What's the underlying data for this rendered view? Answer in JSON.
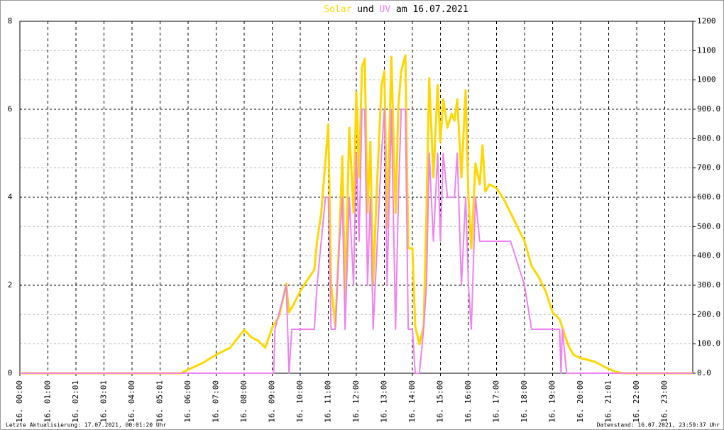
{
  "chart_data": {
    "type": "line",
    "title_parts": [
      "und",
      "am 16.07.2021"
    ],
    "xlim": [
      0,
      24
    ],
    "xticks": [
      {
        "value": 0,
        "label": "16. 00:00"
      },
      {
        "value": 1,
        "label": "16. 01:00"
      },
      {
        "value": 2,
        "label": "16. 02:01"
      },
      {
        "value": 3,
        "label": "16. 03:01"
      },
      {
        "value": 4,
        "label": "16. 04:00"
      },
      {
        "value": 5,
        "label": "16. 05:01"
      },
      {
        "value": 6,
        "label": "16. 06:00"
      },
      {
        "value": 7,
        "label": "16. 07:00"
      },
      {
        "value": 8,
        "label": "16. 08:00"
      },
      {
        "value": 9,
        "label": "16. 09:00"
      },
      {
        "value": 10,
        "label": "16. 10:00"
      },
      {
        "value": 11,
        "label": "16. 11:00"
      },
      {
        "value": 12,
        "label": "16. 12:00"
      },
      {
        "value": 13,
        "label": "16. 13:00"
      },
      {
        "value": 14,
        "label": "16. 14:00"
      },
      {
        "value": 15,
        "label": "16. 15:00"
      },
      {
        "value": 16,
        "label": "16. 16:00"
      },
      {
        "value": 17,
        "label": "16. 17:00"
      },
      {
        "value": 18,
        "label": "16. 18:00"
      },
      {
        "value": 19,
        "label": "16. 19:00"
      },
      {
        "value": 20,
        "label": "16. 20:00"
      },
      {
        "value": 21,
        "label": "16. 21:01"
      },
      {
        "value": 22,
        "label": "16. 22:00"
      },
      {
        "value": 23,
        "label": "16. 23:00"
      }
    ],
    "ylim": [
      0,
      8
    ],
    "yticks": [
      0,
      2,
      4,
      6,
      8
    ],
    "y2lim": [
      0,
      1200
    ],
    "y2ticks": [
      {
        "value": 0,
        "label": "0.0"
      },
      {
        "value": 100,
        "label": "100.0"
      },
      {
        "value": 200,
        "label": "200.0"
      },
      {
        "value": 300,
        "label": "300.0"
      },
      {
        "value": 400,
        "label": "400.0"
      },
      {
        "value": 500,
        "label": "500.0"
      },
      {
        "value": 600,
        "label": "600.0"
      },
      {
        "value": 700,
        "label": "700.0"
      },
      {
        "value": 800,
        "label": "800.0"
      },
      {
        "value": 900,
        "label": "900.0"
      },
      1000,
      1100,
      1200
    ],
    "grid": true,
    "series": [
      {
        "name": "Solar",
        "color": "#ffd700",
        "axis": "y2",
        "x": [
          0,
          5.75,
          6,
          6.5,
          7,
          7.5,
          8,
          8.25,
          8.5,
          8.75,
          9,
          9.25,
          9.5,
          9.6,
          9.75,
          10,
          10.25,
          10.5,
          10.6,
          10.75,
          10.9,
          11,
          11.1,
          11.25,
          11.4,
          11.5,
          11.6,
          11.75,
          11.9,
          12,
          12.1,
          12.2,
          12.3,
          12.4,
          12.5,
          12.6,
          12.75,
          12.9,
          13,
          13.1,
          13.25,
          13.4,
          13.5,
          13.6,
          13.75,
          13.85,
          14,
          14.1,
          14.25,
          14.4,
          14.5,
          14.6,
          14.75,
          14.9,
          15,
          15.1,
          15.25,
          15.4,
          15.5,
          15.6,
          15.75,
          15.9,
          16,
          16.1,
          16.25,
          16.4,
          16.5,
          16.6,
          16.75,
          17,
          17.25,
          17.5,
          17.75,
          18,
          18.25,
          18.5,
          18.75,
          19,
          19.25,
          19.5,
          19.6,
          19.75,
          20,
          20.25,
          20.5,
          20.75,
          21,
          21.25,
          21.5,
          24
        ],
        "values": [
          0,
          0,
          12,
          34,
          63,
          87,
          148,
          123,
          111,
          87,
          155,
          196,
          305,
          208,
          232,
          280,
          317,
          353,
          450,
          547,
          726,
          849,
          305,
          160,
          474,
          740,
          256,
          837,
          547,
          958,
          668,
          1043,
          1072,
          547,
          789,
          305,
          668,
          982,
          1030,
          498,
          1079,
          547,
          910,
          1030,
          1084,
          426,
          426,
          160,
          99,
          160,
          547,
          1006,
          668,
          982,
          789,
          934,
          837,
          885,
          861,
          934,
          668,
          965,
          595,
          426,
          716,
          644,
          777,
          619,
          644,
          631,
          595,
          547,
          498,
          450,
          365,
          329,
          280,
          208,
          184,
          111,
          87,
          63,
          51,
          46,
          39,
          27,
          15,
          5,
          0,
          0
        ]
      },
      {
        "name": "UV",
        "color": "#ee82ee",
        "x": [
          0,
          9.05,
          9.1,
          9.5,
          9.6,
          9.7,
          10.5,
          10.6,
          10.75,
          10.9,
          11,
          11.1,
          11.25,
          11.4,
          11.5,
          11.6,
          11.75,
          11.9,
          12,
          12.1,
          12.2,
          12.3,
          12.4,
          12.5,
          12.6,
          12.75,
          12.9,
          13,
          13.1,
          13.25,
          13.4,
          13.5,
          13.6,
          13.75,
          13.85,
          14,
          14.1,
          14.25,
          14.4,
          14.5,
          14.6,
          14.75,
          14.9,
          15,
          15.1,
          15.25,
          15.5,
          15.6,
          15.75,
          15.9,
          16,
          16.1,
          16.25,
          16.4,
          17.5,
          18,
          18.25,
          19.25,
          19.3,
          19.35,
          19.5,
          24
        ],
        "values": [
          0,
          0,
          1,
          2,
          0,
          1,
          1,
          2,
          3,
          4,
          4,
          1,
          1,
          3,
          4,
          1,
          4,
          2,
          5,
          3,
          6,
          6,
          2,
          4,
          1,
          3,
          5,
          6,
          2,
          6,
          1,
          4,
          6,
          6,
          1,
          1,
          0,
          0,
          1,
          2,
          5,
          3,
          5,
          3,
          5,
          4,
          4,
          5,
          2,
          4,
          2,
          1,
          4,
          3,
          3,
          2,
          1,
          1,
          0,
          1,
          0,
          0
        ]
      }
    ]
  },
  "footer": {
    "left": "Letzte Aktualisierung: 17.07.2021, 00:01:20 Uhr",
    "right": "Datenstand: 16.07.2021, 23:59:37 Uhr"
  }
}
